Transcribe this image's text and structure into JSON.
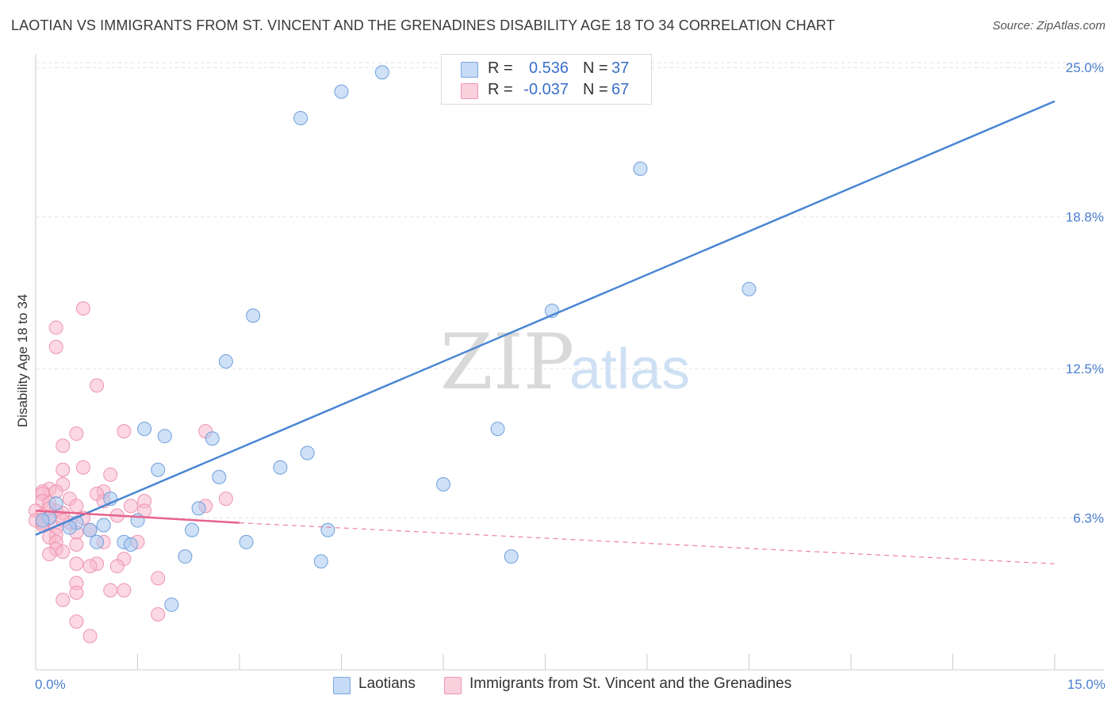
{
  "title": "LAOTIAN VS IMMIGRANTS FROM ST. VINCENT AND THE GRENADINES DISABILITY AGE 18 TO 34 CORRELATION CHART",
  "source": "Source: ZipAtlas.com",
  "watermark": {
    "zip": "ZIP",
    "atlas": "atlas"
  },
  "legend": {
    "rows": [
      {
        "r_label": "R =",
        "r_value": "0.536",
        "n_label": "N =",
        "n_value": "37",
        "color": "#a8c8f0"
      },
      {
        "r_label": "R =",
        "r_value": "-0.037",
        "n_label": "N =",
        "n_value": "67",
        "color": "#f8b8cc"
      }
    ]
  },
  "bottom_legend": [
    {
      "label": "Laotians",
      "color": "#a8c8f0"
    },
    {
      "label": "Immigrants from St. Vincent and the Grenadines",
      "color": "#f8b8cc"
    }
  ],
  "chart_data": {
    "type": "scatter",
    "title": "LAOTIAN VS IMMIGRANTS FROM ST. VINCENT AND THE GRENADINES DISABILITY AGE 18 TO 34 CORRELATION CHART",
    "xlabel": "",
    "ylabel": "Disability Age 18 to 34",
    "xlim": [
      0,
      15
    ],
    "ylim": [
      0,
      25.5
    ],
    "x_tick_labels": [
      "0.0%",
      "15.0%"
    ],
    "y_ticks": [
      6.3,
      12.5,
      18.8,
      25.0
    ],
    "y_tick_labels": [
      "6.3%",
      "12.5%",
      "18.8%",
      "25.0%"
    ],
    "series": [
      {
        "name": "Laotians",
        "color": "#4a86d4",
        "fill": "#a8c8f0",
        "trend": {
          "x": [
            0.0,
            15.0
          ],
          "y": [
            5.6,
            23.6
          ],
          "dashed_to": 15.0
        },
        "points": [
          [
            5.1,
            24.8
          ],
          [
            4.5,
            24.0
          ],
          [
            3.9,
            22.9
          ],
          [
            8.9,
            20.8
          ],
          [
            10.5,
            15.8
          ],
          [
            7.6,
            14.9
          ],
          [
            3.2,
            14.7
          ],
          [
            2.8,
            12.8
          ],
          [
            6.8,
            10.0
          ],
          [
            1.6,
            10.0
          ],
          [
            1.9,
            9.7
          ],
          [
            2.6,
            9.6
          ],
          [
            4.0,
            9.0
          ],
          [
            3.6,
            8.4
          ],
          [
            1.8,
            8.3
          ],
          [
            2.7,
            8.0
          ],
          [
            6.0,
            7.7
          ],
          [
            1.1,
            7.1
          ],
          [
            2.4,
            6.7
          ],
          [
            0.3,
            6.9
          ],
          [
            0.2,
            6.3
          ],
          [
            0.6,
            6.1
          ],
          [
            1.5,
            6.2
          ],
          [
            1.0,
            6.0
          ],
          [
            0.5,
            5.9
          ],
          [
            2.3,
            5.8
          ],
          [
            4.3,
            5.8
          ],
          [
            0.9,
            5.3
          ],
          [
            1.3,
            5.3
          ],
          [
            1.4,
            5.2
          ],
          [
            3.1,
            5.3
          ],
          [
            2.2,
            4.7
          ],
          [
            4.2,
            4.5
          ],
          [
            7.0,
            4.7
          ],
          [
            2.0,
            2.7
          ],
          [
            0.1,
            6.2
          ],
          [
            0.8,
            5.8
          ]
        ]
      },
      {
        "name": "Immigrants from St. Vincent and the Grenadines",
        "color": "#e8628c",
        "fill": "#f8b8cc",
        "trend": {
          "x": [
            0.0,
            3.0
          ],
          "y": [
            6.6,
            6.1
          ],
          "dashed_to": 15.0,
          "y_end": 4.4
        },
        "points": [
          [
            0.7,
            15.0
          ],
          [
            0.3,
            14.2
          ],
          [
            0.3,
            13.4
          ],
          [
            0.9,
            11.8
          ],
          [
            1.3,
            9.9
          ],
          [
            2.5,
            9.9
          ],
          [
            0.6,
            9.8
          ],
          [
            0.4,
            9.3
          ],
          [
            0.7,
            8.4
          ],
          [
            0.4,
            8.3
          ],
          [
            1.1,
            8.1
          ],
          [
            0.4,
            7.7
          ],
          [
            0.2,
            7.5
          ],
          [
            0.1,
            7.4
          ],
          [
            0.1,
            7.3
          ],
          [
            0.3,
            7.4
          ],
          [
            1.0,
            7.4
          ],
          [
            0.9,
            7.3
          ],
          [
            0.5,
            7.1
          ],
          [
            2.8,
            7.1
          ],
          [
            0.1,
            7.0
          ],
          [
            1.0,
            7.0
          ],
          [
            1.6,
            7.0
          ],
          [
            0.2,
            6.9
          ],
          [
            0.6,
            6.8
          ],
          [
            2.5,
            6.8
          ],
          [
            1.4,
            6.8
          ],
          [
            0.3,
            6.6
          ],
          [
            0.0,
            6.6
          ],
          [
            0.4,
            6.5
          ],
          [
            1.6,
            6.6
          ],
          [
            0.1,
            6.4
          ],
          [
            0.2,
            6.3
          ],
          [
            0.7,
            6.3
          ],
          [
            1.2,
            6.4
          ],
          [
            0.0,
            6.2
          ],
          [
            0.5,
            6.1
          ],
          [
            0.1,
            6.0
          ],
          [
            0.3,
            5.9
          ],
          [
            0.8,
            5.8
          ],
          [
            0.3,
            5.6
          ],
          [
            0.6,
            5.7
          ],
          [
            0.2,
            5.5
          ],
          [
            0.3,
            5.3
          ],
          [
            1.0,
            5.3
          ],
          [
            1.5,
            5.3
          ],
          [
            0.6,
            5.2
          ],
          [
            0.3,
            5.0
          ],
          [
            0.4,
            4.9
          ],
          [
            0.2,
            4.8
          ],
          [
            1.3,
            4.6
          ],
          [
            0.6,
            4.4
          ],
          [
            0.9,
            4.4
          ],
          [
            0.8,
            4.3
          ],
          [
            1.2,
            4.3
          ],
          [
            1.8,
            3.8
          ],
          [
            0.6,
            3.6
          ],
          [
            0.6,
            3.2
          ],
          [
            1.1,
            3.3
          ],
          [
            1.3,
            3.3
          ],
          [
            0.4,
            2.9
          ],
          [
            1.8,
            2.3
          ],
          [
            0.6,
            2.0
          ],
          [
            0.8,
            1.4
          ],
          [
            0.1,
            6.1
          ],
          [
            0.4,
            6.2
          ],
          [
            0.2,
            6.7
          ]
        ]
      }
    ]
  }
}
